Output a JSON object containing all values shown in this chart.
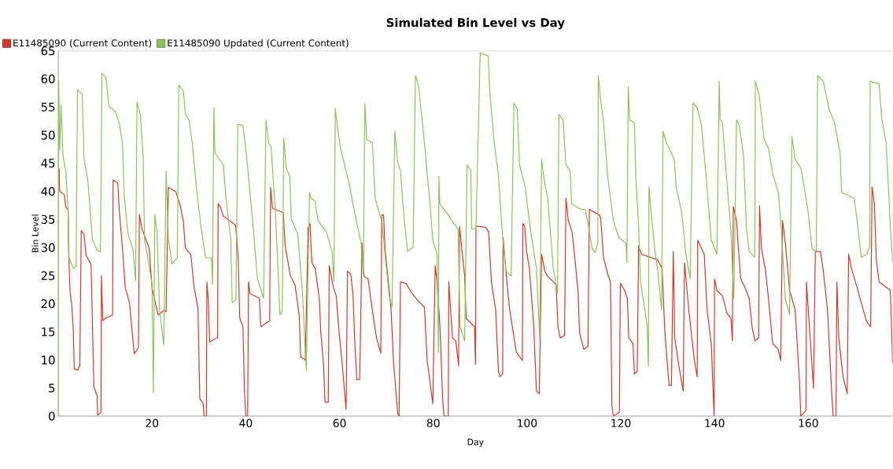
{
  "chart_data": {
    "type": "line",
    "title": "Simulated Bin Level vs Day",
    "xlabel": "Day",
    "ylabel": "Bin Level",
    "xlim": [
      0,
      178
    ],
    "ylim": [
      0,
      65
    ],
    "xticks": [
      20,
      40,
      60,
      80,
      100,
      120,
      140,
      160
    ],
    "yticks": [
      0,
      5,
      10,
      15,
      20,
      25,
      30,
      35,
      40,
      45,
      50,
      55,
      60,
      65
    ],
    "legend": "top left",
    "grid": false,
    "marker": "none",
    "line_style": "solid",
    "series": [
      {
        "name": "E11485090  (Current Content)",
        "color": "#d13a2a",
        "x": [
          0.2,
          0.3,
          1.3,
          1.6,
          2.1,
          2.2,
          2.5,
          2.9,
          3.2,
          3.4,
          4.1,
          4.6,
          4.9,
          5.5,
          5.9,
          7,
          7.6,
          8.3,
          8.4,
          9.1,
          9.2,
          9.5,
          10.2,
          11.6,
          11.7,
          12.7,
          13,
          13.7,
          14.3,
          15.2,
          15.9,
          16.2,
          17.1,
          17.3,
          17.8,
          19.4,
          20,
          21.3,
          22.5,
          23,
          23.5,
          25.1,
          26,
          26.7,
          27.1,
          28.3,
          28.9,
          29.8,
          30.2,
          30.9,
          31.1,
          31.6,
          31.7,
          32,
          32.3,
          34,
          34.1,
          34.6,
          35.2,
          37.8,
          38.1,
          38.4,
          38.7,
          39.4,
          39.7,
          40,
          40.4,
          40.6,
          40.9,
          42.9,
          43.2,
          45.1,
          45.3,
          45.7,
          48,
          48.4,
          49.5,
          50.5,
          51.4,
          51.7,
          52.7,
          53.3,
          53.7,
          54.1,
          54.8,
          55.7,
          56,
          56.6,
          56.9,
          57.6,
          57.8,
          58.7,
          59.3,
          59.9,
          60.5,
          61.4,
          61.7,
          62.4,
          62.9,
          63.2,
          63.7,
          64.3,
          64.8,
          65.2,
          66.1,
          67,
          67.9,
          68.8,
          69,
          69.4,
          69.7,
          70.6,
          71,
          71.5,
          72.4,
          72.7,
          73,
          74.2,
          75.4,
          76.9,
          78.1,
          78.7,
          79.9,
          80.4,
          80.8,
          81.4,
          82,
          82.3,
          83.2,
          83.3,
          84.1,
          84.8,
          85.4,
          85.6,
          86.2,
          86.7,
          87,
          88.8,
          89,
          89.1,
          91.2,
          91.8,
          92.4,
          93.3,
          93.9,
          94.2,
          94.8,
          94.9,
          95.7,
          96.3,
          97.7,
          99,
          99.1,
          99.5,
          99.9,
          100.5,
          100.8,
          101.4,
          102,
          102.6,
          103.1,
          103.8,
          104.4,
          106.2,
          106.6,
          107.1,
          108,
          108.3,
          108.8,
          109.6,
          110.3,
          110.9,
          111.2,
          112.1,
          113,
          113.3,
          115.4,
          115.7,
          116.3,
          117.2,
          117.8,
          118.1,
          118.4,
          119.3,
          119.7,
          119.9,
          120.8,
          121.4,
          121.7,
          122.6,
          122.9,
          123.5,
          123.8,
          124.4,
          127.9,
          128.8,
          129.4,
          130.3,
          130.8,
          131.2,
          131.5,
          132.4,
          133.3,
          133.6,
          134.5,
          135.7,
          136.3,
          136.4,
          137.8,
          138.4,
          139.3,
          139.9,
          140,
          140.5,
          141.7,
          142.6,
          143.5,
          143.8,
          144,
          144.7,
          145,
          145.6,
          146.5,
          147.4,
          148,
          148.6,
          149.4,
          149.6,
          150,
          150.9,
          151.5,
          152.4,
          153.6,
          154.1,
          154.5,
          155.1,
          156,
          157.2,
          158.1,
          158.4,
          159.5,
          159.6,
          160.2,
          161.1,
          161.5,
          162.6,
          163.2,
          164.1,
          165,
          165.3,
          165.9,
          166.1,
          166.5,
          167.4,
          168.3,
          168.6,
          169.2,
          170.4,
          172.4,
          173.3,
          173.6,
          174.1,
          174.5,
          175.1,
          177.5,
          178
        ],
        "values": [
          44,
          40,
          39.4,
          37.2,
          36.7,
          29.8,
          22.3,
          19.6,
          15.4,
          8.4,
          8.2,
          9,
          33,
          32.4,
          28.7,
          27,
          5.2,
          3.6,
          0.2,
          0.7,
          25,
          17,
          17.5,
          18,
          42,
          41.5,
          36.7,
          29.8,
          22.8,
          20.2,
          13.8,
          11.1,
          12.2,
          35.9,
          33.5,
          29.8,
          22.8,
          18,
          18.8,
          18.6,
          40.7,
          39.9,
          37.5,
          34.6,
          30,
          28.7,
          23.4,
          19.1,
          3.1,
          2.3,
          0,
          0,
          23.9,
          20.7,
          13.2,
          14,
          37.8,
          37.2,
          35.6,
          34,
          31.4,
          27.6,
          17.5,
          15.9,
          4.7,
          0,
          0,
          23.9,
          21.8,
          21,
          15.9,
          17,
          40.7,
          37,
          36.2,
          30.3,
          25,
          23.4,
          18,
          10.6,
          10,
          33.5,
          34.3,
          27.3,
          26.3,
          20.9,
          14.9,
          9,
          2.5,
          2.5,
          26.8,
          22.9,
          21.4,
          14.9,
          9.9,
          1.2,
          25.8,
          25.3,
          21.4,
          13.9,
          6.5,
          6.5,
          30.8,
          24.9,
          24.4,
          18.9,
          13.9,
          11.2,
          35.8,
          35.8,
          29.8,
          22.4,
          18.9,
          9.9,
          0.5,
          0,
          23.9,
          23.6,
          21.9,
          20.4,
          19.4,
          9.9,
          2.2,
          26.8,
          23.9,
          16.4,
          3,
          0,
          0,
          23.9,
          13.9,
          13.4,
          9,
          33.8,
          28.8,
          24.9,
          17.4,
          15.9,
          9.2,
          33.8,
          33.6,
          32.8,
          23.9,
          18.9,
          8,
          7,
          7.5,
          31.8,
          23.9,
          18.9,
          11.4,
          9.9,
          34.3,
          33.8,
          29.3,
          26.3,
          22.9,
          16.4,
          4.5,
          4,
          28.8,
          25.8,
          24.9,
          23.4,
          15.9,
          13.9,
          14.4,
          38.8,
          34.8,
          32.8,
          27.3,
          21.9,
          14.9,
          11.9,
          12.4,
          36.8,
          35.8,
          35.3,
          28.3,
          25.3,
          23.9,
          2,
          0,
          0.5,
          0.7,
          23.6,
          22.4,
          20.9,
          13.9,
          12.9,
          7.5,
          8,
          30.3,
          28.8,
          27.8,
          26.3,
          14.9,
          5.5,
          5.5,
          29.3,
          13.9,
          8.9,
          4.5,
          27.3,
          18.9,
          9.9,
          7,
          31.3,
          28.8,
          18.9,
          12.9,
          0,
          24.4,
          22.4,
          21.4,
          18.4,
          17.4,
          13.4,
          37.3,
          34.8,
          30.8,
          24.4,
          22.9,
          20.9,
          15.9,
          13.4,
          13.9,
          37.5,
          29.8,
          25.8,
          20.9,
          12.9,
          11.9,
          9.9,
          34.8,
          30.8,
          22.4,
          18.9,
          6.5,
          0,
          1,
          23.9,
          16.4,
          5,
          29.3,
          29.3,
          25.8,
          18.9,
          4,
          0,
          0,
          23.9,
          13.9,
          7,
          4,
          28.8,
          26.3,
          22.9,
          16.9,
          15.9,
          40.8,
          37.8,
          27.8,
          23.9,
          22.4,
          9.5
        ]
      },
      {
        "name": "E11485090 Updated (Current Content)",
        "color": "#8dc25a",
        "x": [
          0,
          0.1,
          0.3,
          0.6,
          1,
          1.6,
          2.1,
          2.3,
          3.2,
          3.8,
          4.1,
          5.1,
          5.5,
          6.3,
          7.3,
          8.3,
          9,
          9.3,
          10.2,
          10.8,
          12.1,
          13,
          13.7,
          14.1,
          14.9,
          15.9,
          16.5,
          16.8,
          17.5,
          18.1,
          18.4,
          19,
          20,
          20.3,
          20.6,
          21.1,
          21.6,
          22.5,
          23,
          23.5,
          24.3,
          25.4,
          25.7,
          26.7,
          27.1,
          27.9,
          28.6,
          29.5,
          30.5,
          31.4,
          32.7,
          32.9,
          33.2,
          33.4,
          35.2,
          35.8,
          36.8,
          37.1,
          37.9,
          38.3,
          39.4,
          40.3,
          41.6,
          42.5,
          43.8,
          44.3,
          44.9,
          45.4,
          46.3,
          47.3,
          47.8,
          48.1,
          48.6,
          49.4,
          49.7,
          51.1,
          52.1,
          52.9,
          53.6,
          53.9,
          54.8,
          55.4,
          57.2,
          58.4,
          58.8,
          59.1,
          59.6,
          60.2,
          62.2,
          63.2,
          64.6,
          65.1,
          65.4,
          65.8,
          67,
          67.6,
          69.1,
          69.7,
          70.6,
          71.2,
          71.8,
          72.4,
          73,
          73.6,
          74.5,
          75.7,
          76.2,
          76.9,
          78.1,
          79.3,
          79.9,
          80.8,
          81.1,
          81.2,
          81.4,
          83.2,
          84.4,
          85.3,
          85.7,
          86.7,
          87.2,
          88,
          88.2,
          89.1,
          90,
          91.7,
          92.1,
          93,
          93.9,
          94.8,
          95.5,
          96.6,
          97.2,
          97.9,
          98.4,
          99.6,
          100.8,
          102,
          102.7,
          103.1,
          103.7,
          104.4,
          105.6,
          106.5,
          106.8,
          107.7,
          108.3,
          109.2,
          109.5,
          111.5,
          112.4,
          113,
          113.9,
          114.5,
          115.1,
          115.2,
          115.7,
          116.3,
          117.2,
          118.4,
          119.6,
          121.1,
          121.3,
          121.6,
          121.9,
          122.9,
          123.2,
          123.8,
          124.2,
          125.6,
          125.9,
          126,
          126.4,
          127.3,
          127.9,
          128.7,
          129,
          129.7,
          131.4,
          131.8,
          133,
          133.9,
          134.8,
          135.4,
          136.3,
          137.2,
          138.1,
          139.3,
          140.5,
          141,
          141.2,
          141.7,
          142.3,
          143.5,
          144.1,
          144.7,
          145.3,
          146.2,
          146.8,
          147.4,
          148.6,
          148.7,
          149.5,
          150.6,
          151.5,
          152.4,
          153.6,
          154.2,
          155.1,
          156,
          156.5,
          157.2,
          158.4,
          159.3,
          159.9,
          160.8,
          161.7,
          162,
          163.2,
          164.4,
          165.6,
          166.8,
          167.1,
          169.8,
          170.4,
          171.3,
          172.5,
          173.1,
          173.2,
          175.1,
          175.7,
          176.6,
          177.5,
          178
        ],
        "values": [
          0,
          59.7,
          47.4,
          55.4,
          46.3,
          43.6,
          36.7,
          28.2,
          26.3,
          26.6,
          58.1,
          57.3,
          45.8,
          42,
          31.4,
          29.5,
          29.2,
          61,
          60.2,
          55.1,
          54.3,
          52.2,
          48.5,
          38.8,
          32.4,
          29.8,
          24.2,
          55.9,
          53.8,
          46.3,
          31.4,
          28.7,
          23.4,
          4.2,
          35.9,
          32.4,
          19.1,
          12.7,
          43.6,
          31.4,
          27.1,
          28.2,
          58.9,
          57.8,
          53.8,
          52.7,
          48.5,
          40.4,
          33.5,
          28.2,
          28.2,
          23.4,
          54.9,
          46.9,
          44.7,
          38.8,
          31.4,
          20.2,
          20.7,
          51.9,
          51.7,
          45.3,
          33.5,
          24.4,
          21,
          52.7,
          48.5,
          47.9,
          36.7,
          18,
          18.6,
          49.5,
          44.2,
          42.6,
          35.1,
          32.4,
          21.8,
          8.2,
          39.8,
          38.8,
          38.3,
          34.8,
          32.8,
          29.3,
          23.9,
          54.7,
          51.2,
          47.7,
          40.8,
          36.3,
          30.8,
          25.3,
          55.7,
          49.2,
          48.7,
          38.8,
          34.3,
          28.8,
          21.4,
          19.4,
          50.7,
          45.2,
          43.7,
          36.8,
          29.3,
          30.1,
          60.6,
          58.6,
          48.7,
          37.8,
          31.3,
          28.8,
          11.4,
          42.7,
          37.8,
          35.8,
          34.3,
          33.3,
          15.9,
          13.4,
          44.7,
          43.7,
          33.3,
          33.3,
          64.6,
          64.1,
          57.2,
          48.7,
          42.7,
          31.8,
          25.8,
          24.9,
          55.7,
          54.7,
          44.7,
          40.8,
          32.8,
          26.3,
          13.9,
          45.7,
          41.8,
          38.8,
          26.3,
          21.9,
          53.7,
          52.7,
          44.7,
          43.7,
          37.8,
          36.8,
          36.8,
          34.3,
          29.8,
          29.1,
          30.8,
          60.6,
          56.2,
          52.7,
          42.7,
          34.8,
          31.8,
          30.8,
          27.3,
          58.6,
          52.7,
          52.2,
          42.7,
          33.8,
          23.9,
          16.4,
          8.9,
          40.8,
          36.8,
          29.3,
          25.8,
          18.9,
          50.7,
          48.7,
          45.7,
          40.8,
          36.3,
          28.8,
          24.4,
          55.7,
          54.9,
          51.7,
          43.7,
          31.3,
          28.8,
          59.6,
          52.7,
          52.2,
          45.2,
          32.8,
          20.9,
          52.7,
          51.7,
          46.2,
          33.3,
          29.3,
          28.3,
          59.6,
          57.2,
          49.2,
          47.7,
          43.2,
          39.8,
          33.8,
          20.9,
          18.1,
          49.7,
          45.7,
          44.2,
          39.8,
          36.8,
          29.8,
          29.3,
          60.6,
          59.6,
          54.7,
          52.2,
          46.7,
          39.8,
          38.8,
          34.8,
          28.3,
          28.8,
          30.3,
          59.6,
          59.1,
          52.7,
          48.7,
          33.8,
          27.3
        ]
      }
    ]
  }
}
